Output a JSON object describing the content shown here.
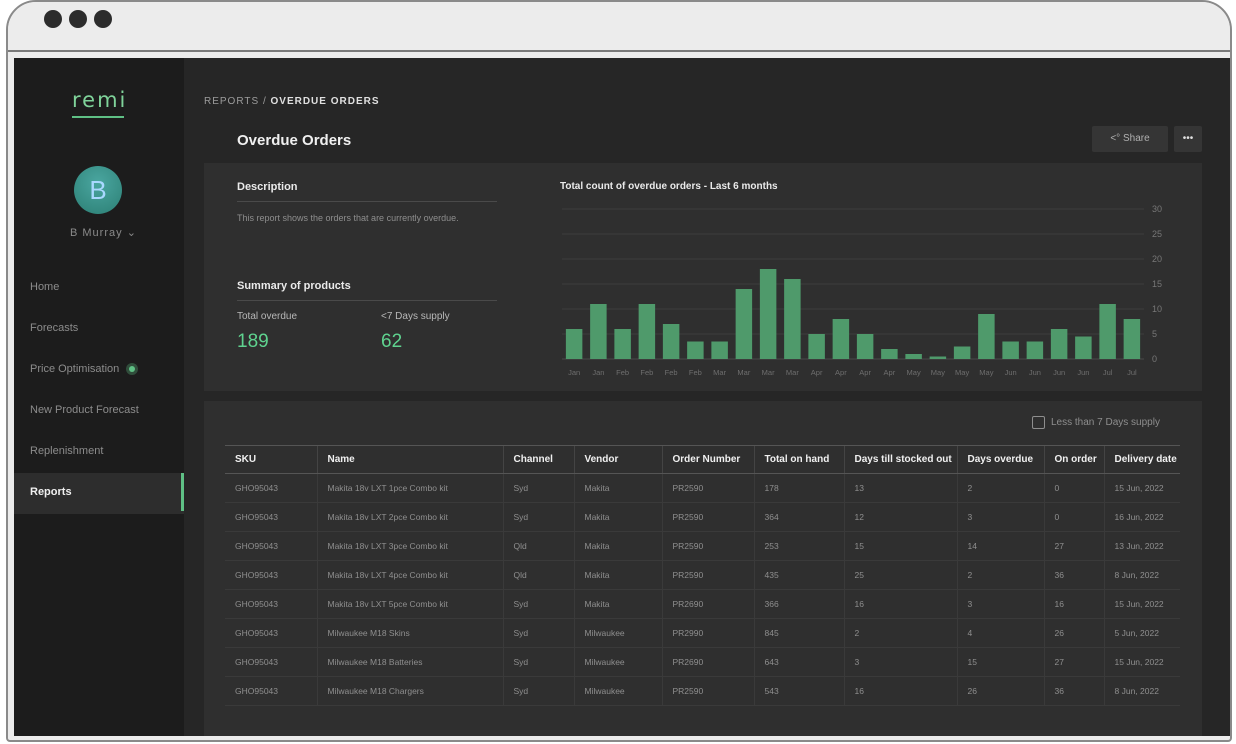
{
  "app": {
    "logo": "remi",
    "user_initial": "B",
    "user_name": "B Murray"
  },
  "nav": {
    "items": [
      "Home",
      "Forecasts",
      "Price Optimisation",
      "New Product Forecast",
      "Replenishment",
      "Reports"
    ],
    "active": "Reports"
  },
  "breadcrumb": {
    "parent": "REPORTS /",
    "current": "OVERDUE ORDERS"
  },
  "page": {
    "title": "Overdue Orders",
    "share_label": "Share",
    "more_label": "•••"
  },
  "description": {
    "title": "Description",
    "text": "This report shows the orders that are currently overdue."
  },
  "summary": {
    "title": "Summary of products",
    "total_overdue_label": "Total overdue",
    "total_overdue_value": "189",
    "supply_label": "<7 Days supply",
    "supply_value": "62"
  },
  "chart_data": {
    "type": "bar",
    "title": "Total count of overdue orders - Last 6 months",
    "categories": [
      "Jan",
      "Jan",
      "Feb",
      "Feb",
      "Feb",
      "Feb",
      "Mar",
      "Mar",
      "Mar",
      "Mar",
      "Apr",
      "Apr",
      "Apr",
      "Apr",
      "May",
      "May",
      "May",
      "May",
      "Jun",
      "Jun",
      "Jun",
      "Jun",
      "Jul",
      "Jul"
    ],
    "values": [
      6,
      11,
      6,
      11,
      7,
      3.5,
      3.5,
      14,
      18,
      16,
      5,
      8,
      5,
      2,
      1,
      0.5,
      2.5,
      9,
      3.5,
      3.5,
      6,
      4.5,
      11,
      8
    ],
    "yticks": [
      0,
      5,
      10,
      15,
      20,
      25,
      30
    ],
    "ylim": [
      0,
      30
    ],
    "color": "#4f9a6b"
  },
  "filter": {
    "label": "Less than 7 Days supply"
  },
  "table": {
    "columns": [
      "SKU",
      "Name",
      "Channel",
      "Vendor",
      "Order Number",
      "Total on hand",
      "Days till stocked out",
      "Days overdue",
      "On order",
      "Delivery date"
    ],
    "rows": [
      [
        "GHO95043",
        "Makita 18v LXT 1pce Combo kit",
        "Syd",
        "Makita",
        "PR2590",
        "178",
        "13",
        "2",
        "0",
        "15 Jun, 2022"
      ],
      [
        "GHO95043",
        "Makita 18v LXT 2pce Combo kit",
        "Syd",
        "Makita",
        "PR2590",
        "364",
        "12",
        "3",
        "0",
        "16 Jun, 2022"
      ],
      [
        "GHO95043",
        "Makita 18v LXT 3pce Combo kit",
        "Qld",
        "Makita",
        "PR2590",
        "253",
        "15",
        "14",
        "27",
        "13 Jun, 2022"
      ],
      [
        "GHO95043",
        "Makita 18v LXT 4pce Combo kit",
        "Qld",
        "Makita",
        "PR2590",
        "435",
        "25",
        "2",
        "36",
        "8 Jun, 2022"
      ],
      [
        "GHO95043",
        "Makita 18v LXT 5pce Combo kit",
        "Syd",
        "Makita",
        "PR2690",
        "366",
        "16",
        "3",
        "16",
        "15 Jun, 2022"
      ],
      [
        "GHO95043",
        "Milwaukee M18 Skins",
        "Syd",
        "Milwaukee",
        "PR2990",
        "845",
        "2",
        "4",
        "26",
        "5 Jun, 2022"
      ],
      [
        "GHO95043",
        "Milwaukee M18 Batteries",
        "Syd",
        "Milwaukee",
        "PR2690",
        "643",
        "3",
        "15",
        "27",
        "15 Jun, 2022"
      ],
      [
        "GHO95043",
        "Milwaukee M18 Chargers",
        "Syd",
        "Milwaukee",
        "PR2590",
        "543",
        "16",
        "26",
        "36",
        "8 Jun, 2022"
      ]
    ]
  }
}
